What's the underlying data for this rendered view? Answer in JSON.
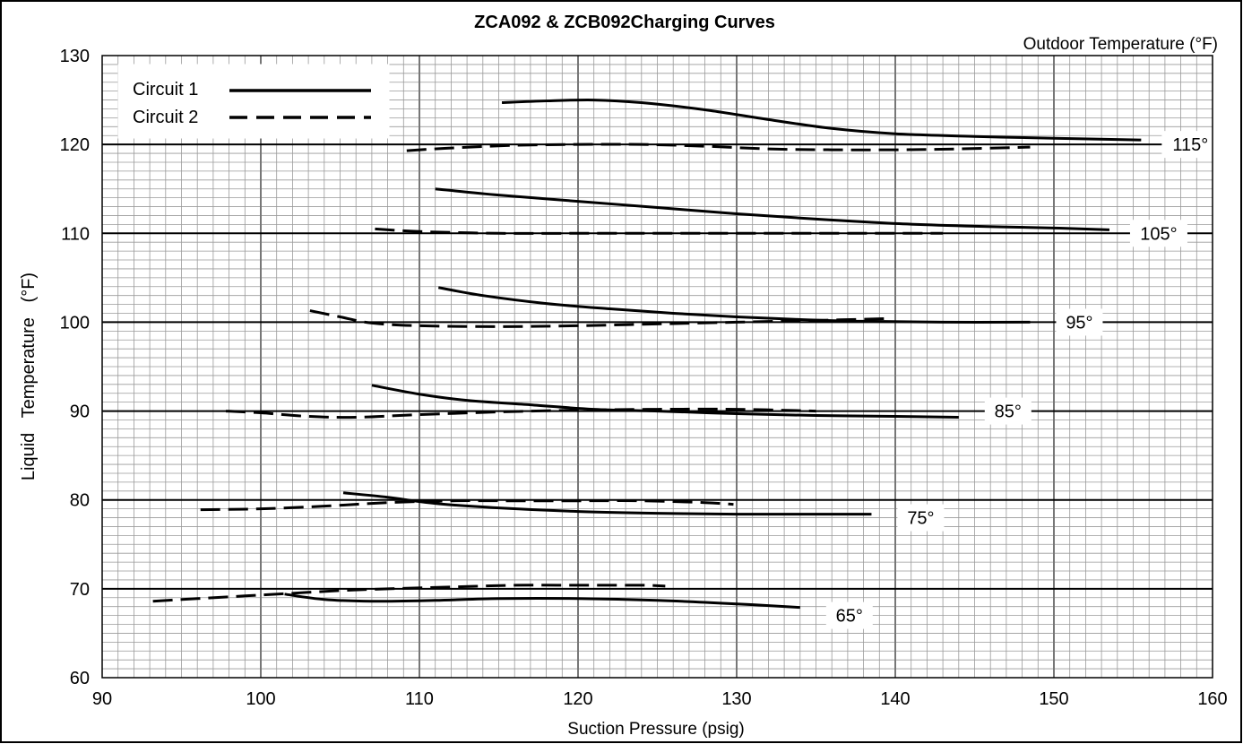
{
  "chart_data": {
    "type": "line",
    "title": "ZCA092 & ZCB092Charging Curves",
    "xlabel": "Suction Pressure (psig)",
    "ylabel": "Liquid   Temperature   (°F)",
    "secondary_label": "Outdoor Temperature (°F)",
    "xlim": [
      90,
      160
    ],
    "ylim": [
      60,
      130
    ],
    "x_ticks": [
      90,
      100,
      110,
      120,
      130,
      140,
      150,
      160
    ],
    "y_ticks": [
      60,
      70,
      80,
      90,
      100,
      110,
      120,
      130
    ],
    "grid": true,
    "legend_position": "top-left",
    "legend": [
      {
        "label": "Circuit 1",
        "style": "solid"
      },
      {
        "label": "Circuit 2",
        "style": "dashed"
      }
    ],
    "curve_labels": [
      "115°",
      "105°",
      "95°",
      "85°",
      "75°",
      "65°"
    ],
    "series": [
      {
        "circuit": "Circuit 1",
        "outdoor": "115°",
        "style": "solid",
        "x": [
          115.2,
          118,
          121,
          124,
          128,
          132,
          136,
          140,
          145,
          150,
          155.5
        ],
        "y": [
          124.7,
          124.9,
          125.0,
          124.7,
          123.9,
          122.8,
          121.8,
          121.2,
          120.9,
          120.7,
          120.5
        ]
      },
      {
        "circuit": "Circuit 2",
        "outdoor": "115°",
        "style": "dashed",
        "x": [
          109.2,
          112,
          116,
          120,
          124,
          128,
          132,
          136,
          140,
          144,
          148.5
        ],
        "y": [
          119.3,
          119.6,
          119.9,
          120.0,
          120.0,
          119.8,
          119.5,
          119.4,
          119.4,
          119.5,
          119.7
        ]
      },
      {
        "circuit": "Circuit 1",
        "outdoor": "105°",
        "style": "solid",
        "x": [
          111,
          115,
          120,
          125,
          130,
          135,
          140,
          145,
          150,
          153.5
        ],
        "y": [
          115.0,
          114.3,
          113.6,
          112.9,
          112.2,
          111.6,
          111.1,
          110.8,
          110.6,
          110.4
        ]
      },
      {
        "circuit": "Circuit 2",
        "outdoor": "105°",
        "style": "dashed",
        "x": [
          107.2,
          110,
          115,
          120,
          125,
          130,
          135,
          140,
          143
        ],
        "y": [
          110.5,
          110.2,
          110.0,
          110.0,
          110.0,
          110.0,
          110.0,
          110.0,
          110.0
        ]
      },
      {
        "circuit": "Circuit 1",
        "outdoor": "95°",
        "style": "solid",
        "x": [
          111.2,
          114,
          118,
          122,
          126,
          130,
          134,
          138,
          143,
          148.5
        ],
        "y": [
          103.9,
          103.0,
          102.1,
          101.5,
          101.0,
          100.6,
          100.3,
          100.1,
          100.0,
          100.0
        ]
      },
      {
        "circuit": "Circuit 2",
        "outdoor": "95°",
        "style": "dashed",
        "x": [
          103.1,
          105,
          107,
          110,
          115,
          120,
          125,
          130,
          135,
          139.5
        ],
        "y": [
          101.3,
          100.6,
          99.9,
          99.6,
          99.5,
          99.6,
          99.8,
          100.0,
          100.2,
          100.4
        ]
      },
      {
        "circuit": "Circuit 1",
        "outdoor": "85°",
        "style": "solid",
        "x": [
          107,
          110,
          113,
          117,
          121,
          125,
          130,
          135,
          140,
          144
        ],
        "y": [
          92.9,
          91.9,
          91.2,
          90.7,
          90.2,
          90.0,
          89.7,
          89.5,
          89.4,
          89.3
        ]
      },
      {
        "circuit": "Circuit 2",
        "outdoor": "85°",
        "style": "dashed",
        "x": [
          97.8,
          100,
          103,
          106,
          110,
          115,
          120,
          125,
          130,
          135
        ],
        "y": [
          90.0,
          89.8,
          89.4,
          89.3,
          89.6,
          89.9,
          90.1,
          90.2,
          90.2,
          90.0
        ]
      },
      {
        "circuit": "Circuit 1",
        "outdoor": "75°",
        "style": "solid",
        "x": [
          105.2,
          108,
          111,
          115,
          120,
          125,
          130,
          134,
          138.5
        ],
        "y": [
          80.8,
          80.3,
          79.6,
          79.1,
          78.7,
          78.5,
          78.4,
          78.4,
          78.4
        ]
      },
      {
        "circuit": "Circuit 2",
        "outdoor": "75°",
        "style": "dashed",
        "x": [
          96.2,
          100,
          104,
          108,
          112,
          116,
          120,
          124,
          128,
          129.8
        ],
        "y": [
          78.9,
          79.0,
          79.3,
          79.7,
          79.9,
          79.9,
          79.9,
          79.9,
          79.7,
          79.5
        ]
      },
      {
        "circuit": "Circuit 1",
        "outdoor": "65°",
        "style": "solid",
        "x": [
          101.5,
          104,
          107,
          111,
          115,
          120,
          125,
          130,
          134
        ],
        "y": [
          69.4,
          68.8,
          68.6,
          68.7,
          68.9,
          68.9,
          68.7,
          68.3,
          67.9
        ]
      },
      {
        "circuit": "Circuit 2",
        "outdoor": "65°",
        "style": "dashed",
        "x": [
          93.2,
          96,
          99,
          102,
          105,
          108,
          112,
          116,
          120,
          124,
          125.5
        ],
        "y": [
          68.6,
          68.9,
          69.2,
          69.5,
          69.8,
          70.0,
          70.2,
          70.4,
          70.4,
          70.4,
          70.3
        ]
      }
    ]
  }
}
